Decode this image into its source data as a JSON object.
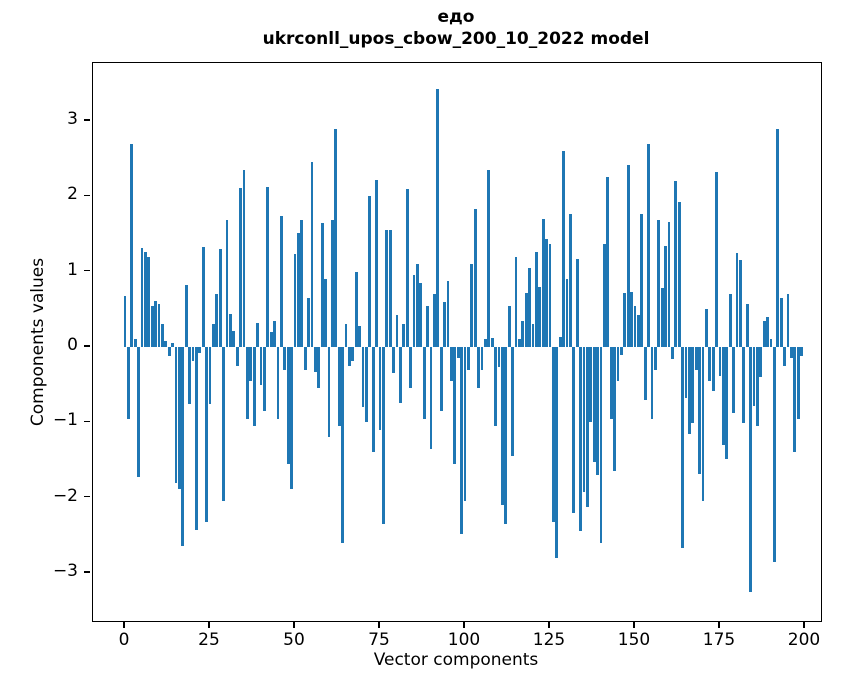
{
  "chart_data": {
    "type": "bar",
    "title_line1": "едо",
    "title_line2": "ukrconll_upos_cbow_200_10_2022 model",
    "xlabel": "Vector components",
    "ylabel": "Components values",
    "x_ticks": [
      0,
      25,
      50,
      75,
      100,
      125,
      150,
      175,
      200
    ],
    "y_ticks": [
      3,
      2,
      1,
      0,
      -1,
      -2,
      -3
    ],
    "y_tick_labels": [
      "3",
      "2",
      "1",
      "0",
      "−1",
      "−2",
      "−3"
    ],
    "xlim": [
      -9.4,
      204.7
    ],
    "ylim": [
      -3.64,
      3.77
    ],
    "bar_color": "#1f77b4",
    "grid": false,
    "legend": null,
    "x": "component index 0..199",
    "values": [
      0.68,
      -0.95,
      2.7,
      0.1,
      -1.73,
      1.32,
      1.26,
      1.19,
      0.54,
      0.61,
      0.57,
      0.3,
      0.08,
      -0.12,
      0.05,
      -1.8,
      -1.89,
      -2.64,
      0.82,
      -0.76,
      -0.19,
      -2.43,
      -0.08,
      1.33,
      -2.33,
      -0.76,
      0.31,
      0.7,
      1.3,
      -2.05,
      1.68,
      0.44,
      0.21,
      -0.25,
      2.11,
      2.35,
      -0.95,
      -0.45,
      -1.05,
      0.32,
      -0.5,
      -0.85,
      2.12,
      0.2,
      0.35,
      -0.95,
      1.74,
      -0.3,
      -1.55,
      -1.88,
      1.23,
      1.52,
      1.68,
      -0.3,
      0.65,
      2.45,
      -0.33,
      -0.55,
      1.65,
      0.9,
      -1.2,
      1.68,
      2.9,
      -1.05,
      -2.6,
      0.3,
      -0.25,
      -0.18,
      1.0,
      0.28,
      -0.8,
      -1.0,
      2.0,
      -1.4,
      2.22,
      -1.1,
      -2.35,
      1.55,
      1.55,
      -0.35,
      0.42,
      -0.75,
      0.3,
      2.1,
      -0.55,
      0.95,
      1.1,
      0.85,
      -0.95,
      0.55,
      -1.35,
      0.7,
      3.42,
      -0.85,
      0.6,
      0.88,
      -0.45,
      -1.55,
      -0.15,
      -2.48,
      -2.05,
      -0.3,
      1.1,
      1.83,
      -0.55,
      -0.3,
      0.1,
      2.35,
      0.12,
      -1.05,
      -0.27,
      -2.1,
      -2.35,
      0.55,
      -1.45,
      1.2,
      0.1,
      0.35,
      0.72,
      1.05,
      0.3,
      1.26,
      0.8,
      1.7,
      1.43,
      1.37,
      -2.33,
      -2.8,
      0.13,
      2.6,
      0.9,
      1.77,
      -2.2,
      1.17,
      -2.44,
      -1.93,
      -2.13,
      -1.0,
      -1.53,
      -1.7,
      -2.6,
      1.37,
      2.26,
      -0.95,
      -1.64,
      -0.45,
      -0.1,
      0.72,
      2.42,
      0.73,
      0.55,
      0.42,
      1.77,
      -0.7,
      2.7,
      -0.95,
      -0.3,
      1.69,
      0.78,
      1.34,
      1.66,
      -0.16,
      2.21,
      1.92,
      -2.67,
      -0.68,
      -1.15,
      -1.01,
      -0.3,
      -1.69,
      -2.04,
      0.5,
      -0.45,
      -0.58,
      2.32,
      -0.38,
      -1.3,
      -1.49,
      0.71,
      -0.87,
      1.25,
      1.15,
      -1.01,
      0.57,
      -3.25,
      -0.78,
      -1.05,
      -0.4,
      0.35,
      0.4,
      0.1,
      -2.85,
      2.9,
      0.65,
      -0.25,
      0.7,
      -0.15,
      -1.4,
      -0.95,
      -0.12
    ]
  }
}
